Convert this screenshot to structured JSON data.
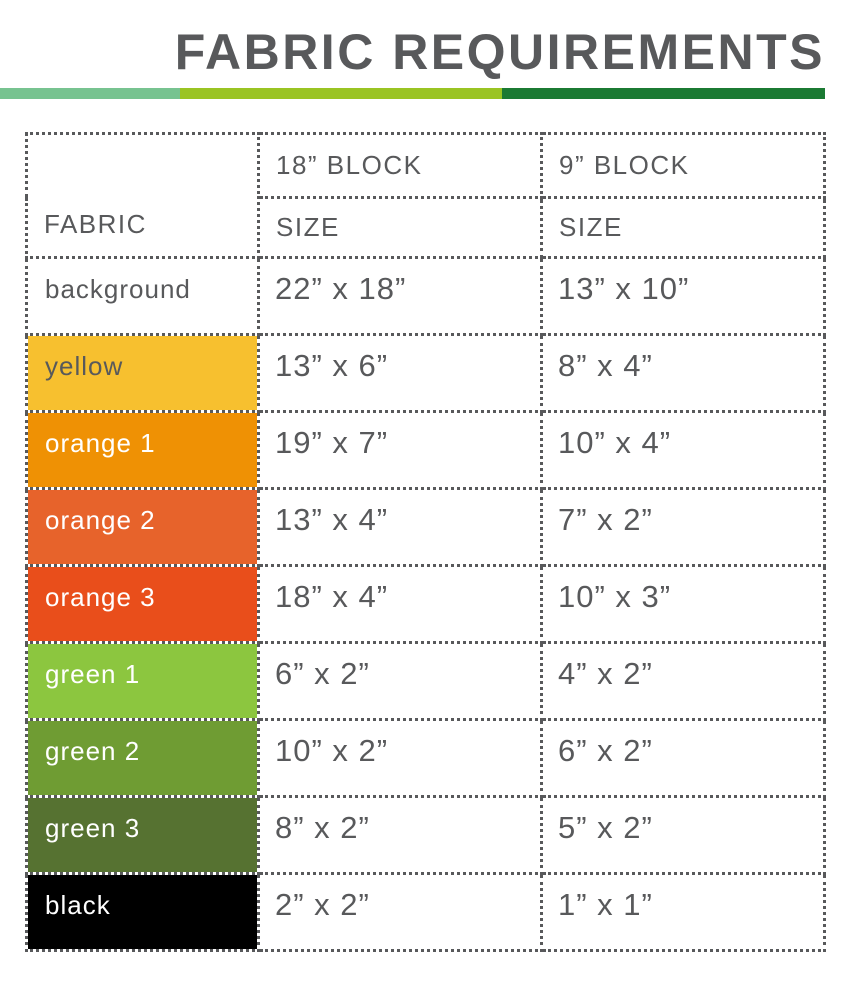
{
  "page": {
    "title": "FABRIC REQUIREMENTS",
    "title_color": "#58595b",
    "accent_bar": [
      {
        "name": "light-green-segment",
        "color": "#77c390"
      },
      {
        "name": "yellow-green-segment",
        "color": "#9ac423"
      },
      {
        "name": "dark-green-segment",
        "color": "#1b7a33"
      }
    ]
  },
  "table": {
    "border_color": "#58595b",
    "text_color": "#58595b",
    "header": {
      "fabric_label": "FABRIC",
      "col_18_block": "18” BLOCK",
      "col_9_block": "9” BLOCK",
      "size_label": "SIZE"
    },
    "rows": [
      {
        "fabric": "background",
        "color": "#ffffff",
        "label_color": "#58595b",
        "size_18": "22” x 18”",
        "size_9": "13” x 10”"
      },
      {
        "fabric": "yellow",
        "color": "#f7c02f",
        "label_color": "#58595b",
        "size_18": "13” x 6”",
        "size_9": "8” x 4”"
      },
      {
        "fabric": "orange 1",
        "color": "#ef9104",
        "label_color": "#ffffff",
        "size_18": "19” x 7”",
        "size_9": "10” x 4”"
      },
      {
        "fabric": "orange 2",
        "color": "#e7632b",
        "label_color": "#ffffff",
        "size_18": "13” x 4”",
        "size_9": "7” x 2”"
      },
      {
        "fabric": "orange 3",
        "color": "#e94e1b",
        "label_color": "#ffffff",
        "size_18": "18” x 4”",
        "size_9": "10” x 3”"
      },
      {
        "fabric": "green 1",
        "color": "#8cc63f",
        "label_color": "#ffffff",
        "size_18": "6” x 2”",
        "size_9": "4” x 2”"
      },
      {
        "fabric": "green 2",
        "color": "#6f9c33",
        "label_color": "#ffffff",
        "size_18": "10” x 2”",
        "size_9": "6” x 2”"
      },
      {
        "fabric": "green 3",
        "color": "#567231",
        "label_color": "#ffffff",
        "size_18": "8” x 2”",
        "size_9": "5” x 2”"
      },
      {
        "fabric": "black",
        "color": "#000000",
        "label_color": "#ffffff",
        "size_18": "2” x 2”",
        "size_9": "1” x 1”"
      }
    ]
  }
}
